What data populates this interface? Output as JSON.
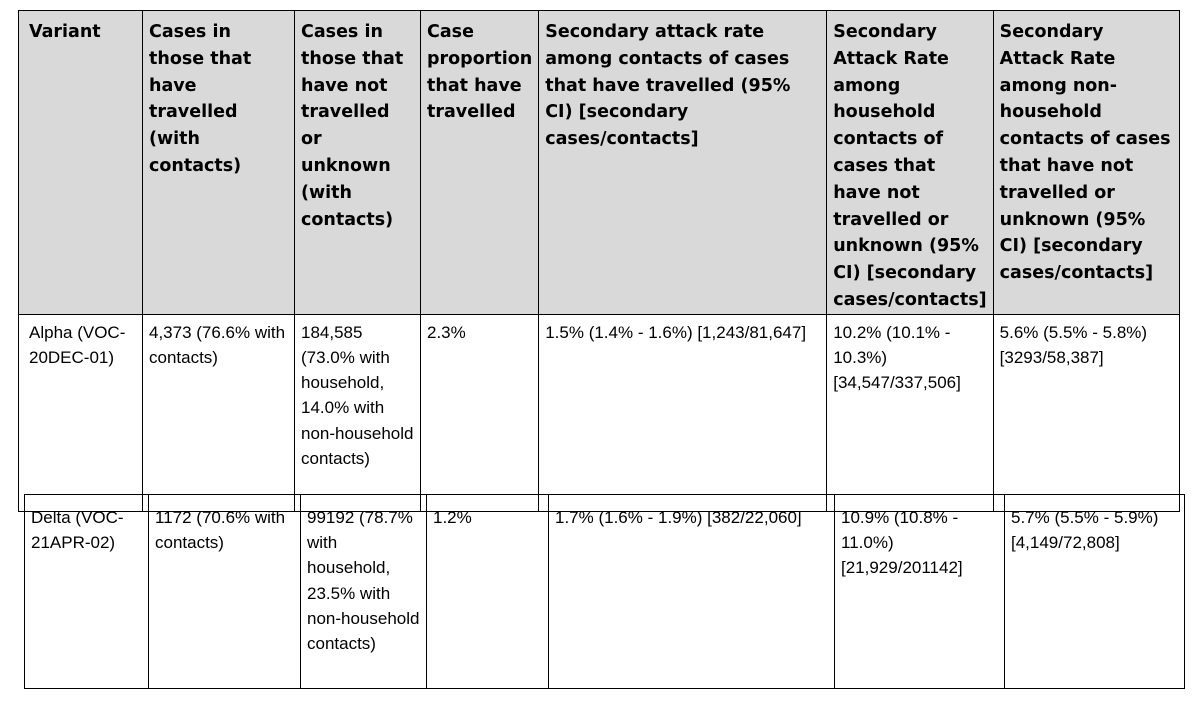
{
  "headers": [
    "Variant",
    "Cases in those that have travelled (with contacts)",
    "Cases in those that have not travelled or unknown (with contacts)",
    "Case proportion that have travelled",
    "Secondary attack rate among contacts of cases that have travelled (95% CI) [secondary cases/contacts]",
    "Secondary Attack Rate among household contacts of cases that have not travelled or unknown (95% CI) [secondary cases/contacts]",
    "Secondary Attack Rate among non-household contacts of cases that have not travelled or unknown (95% CI) [secondary cases/contacts]"
  ],
  "rows": [
    {
      "variant": "Alpha (VOC-20DEC-01)",
      "travelled": "4,373 (76.6% with contacts)",
      "not_travelled": "184,585 (73.0% with household, 14.0% with non-household contacts)",
      "proportion": "2.3%",
      "sar_travelled": "1.5% (1.4% - 1.6%) [1,243/81,647]",
      "sar_household": "10.2% (10.1% - 10.3%) [34,547/337,506]",
      "sar_non_household": "5.6% (5.5% - 5.8%) [3293/58,387]"
    },
    {
      "variant": "Delta (VOC-21APR-02)",
      "travelled": "1172 (70.6% with contacts)",
      "not_travelled": "99192 (78.7% with household, 23.5% with non-household contacts)",
      "proportion": "1.2%",
      "sar_travelled": "1.7% (1.6% - 1.9%) [382/22,060]",
      "sar_household": "10.9% (10.8% - 11.0%) [21,929/201142]",
      "sar_non_household": "5.7% (5.5% - 5.9%) [4,149/72,808]"
    }
  ]
}
